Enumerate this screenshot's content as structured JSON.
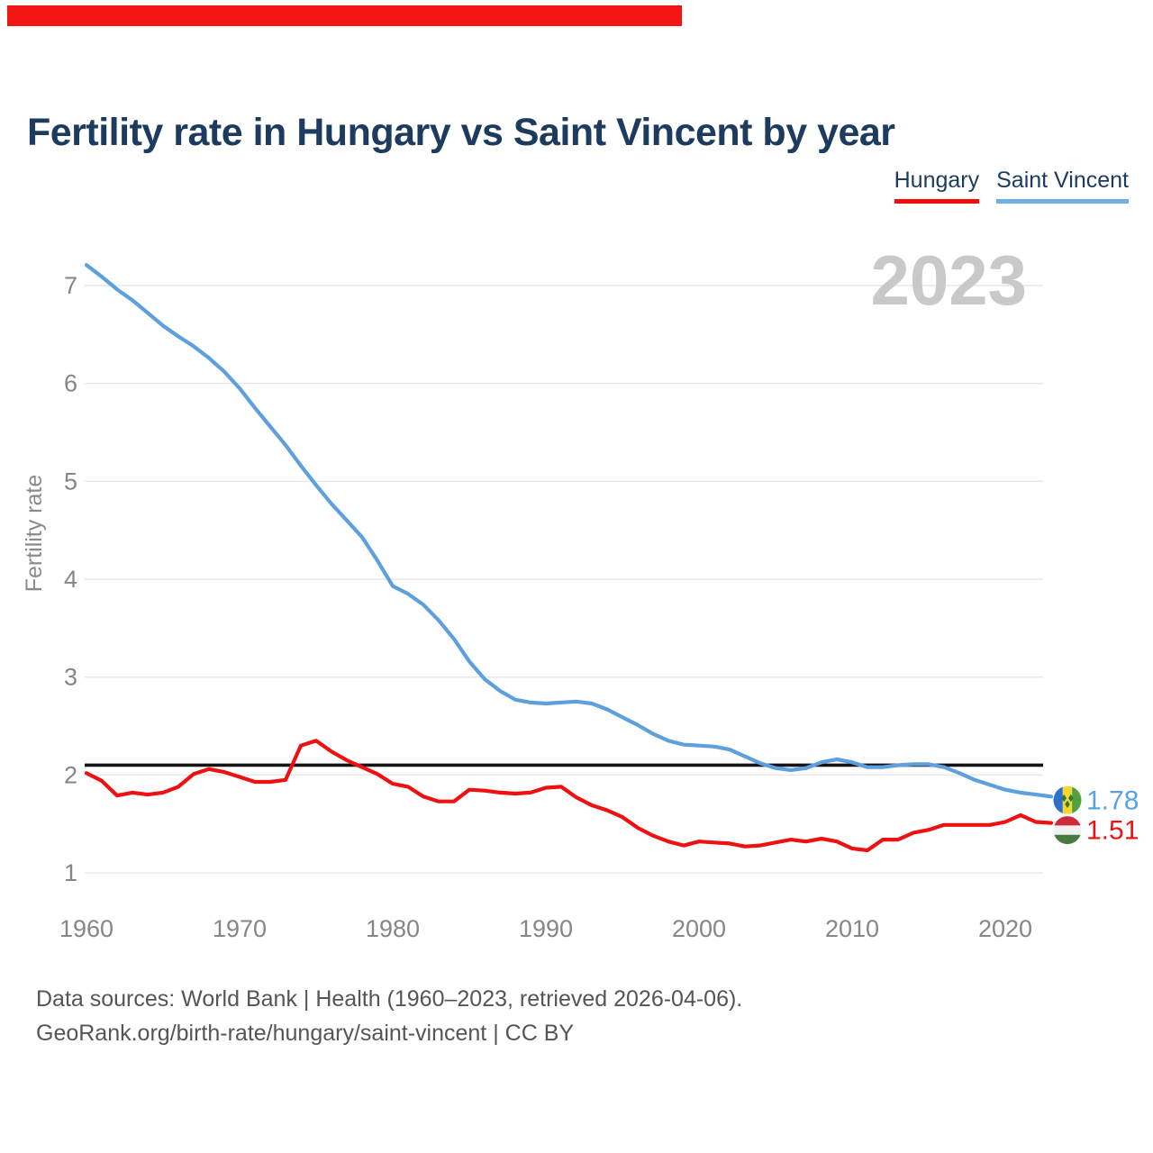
{
  "top_bar": {
    "color": "#f31414"
  },
  "header": {
    "title": "Fertility rate in Hungary vs Saint Vincent by year"
  },
  "legend": {
    "items": [
      {
        "label": "Hungary",
        "color": "#f20c0c"
      },
      {
        "label": "Saint Vincent",
        "color": "#6fb0e6"
      }
    ]
  },
  "watermark": {
    "text": "2023",
    "color": "#c9c9c9"
  },
  "chart_data": {
    "type": "line",
    "title": "Fertility rate in Hungary vs Saint Vincent by year",
    "xlabel": "",
    "ylabel": "Fertility rate",
    "xlim": [
      1960,
      2023
    ],
    "ylim": [
      1,
      7
    ],
    "grid": "horizontal",
    "legend_position": "top-right",
    "x_ticks": [
      1960,
      1970,
      1980,
      1990,
      2000,
      2010,
      2020
    ],
    "y_ticks": [
      1,
      2,
      3,
      4,
      5,
      6,
      7
    ],
    "reference_line": {
      "value": 2.1,
      "color": "#141414"
    },
    "x": [
      1960,
      1961,
      1962,
      1963,
      1964,
      1965,
      1966,
      1967,
      1968,
      1969,
      1970,
      1971,
      1972,
      1973,
      1974,
      1975,
      1976,
      1977,
      1978,
      1979,
      1980,
      1981,
      1982,
      1983,
      1984,
      1985,
      1986,
      1987,
      1988,
      1989,
      1990,
      1991,
      1992,
      1993,
      1994,
      1995,
      1996,
      1997,
      1998,
      1999,
      2000,
      2001,
      2002,
      2003,
      2004,
      2005,
      2006,
      2007,
      2008,
      2009,
      2010,
      2011,
      2012,
      2013,
      2014,
      2015,
      2016,
      2017,
      2018,
      2019,
      2020,
      2021,
      2022,
      2023
    ],
    "series": [
      {
        "name": "Hungary",
        "color": "#ee1111",
        "end_label": "1.51",
        "values": [
          2.02,
          1.94,
          1.79,
          1.82,
          1.8,
          1.82,
          1.88,
          2.01,
          2.06,
          2.03,
          1.98,
          1.93,
          1.93,
          1.95,
          2.3,
          2.35,
          2.24,
          2.15,
          2.08,
          2.01,
          1.91,
          1.88,
          1.78,
          1.73,
          1.73,
          1.85,
          1.84,
          1.82,
          1.81,
          1.82,
          1.87,
          1.88,
          1.77,
          1.69,
          1.64,
          1.57,
          1.46,
          1.38,
          1.32,
          1.28,
          1.32,
          1.31,
          1.3,
          1.27,
          1.28,
          1.31,
          1.34,
          1.32,
          1.35,
          1.32,
          1.25,
          1.23,
          1.34,
          1.34,
          1.41,
          1.44,
          1.49,
          1.49,
          1.49,
          1.49,
          1.52,
          1.59,
          1.52,
          1.51
        ]
      },
      {
        "name": "Saint Vincent",
        "color": "#5ea0dd",
        "end_label": "1.78",
        "values": [
          7.21,
          7.09,
          6.96,
          6.85,
          6.72,
          6.59,
          6.48,
          6.38,
          6.26,
          6.12,
          5.95,
          5.75,
          5.56,
          5.37,
          5.16,
          4.96,
          4.77,
          4.6,
          4.43,
          4.19,
          3.93,
          3.85,
          3.74,
          3.58,
          3.39,
          3.16,
          2.98,
          2.86,
          2.77,
          2.74,
          2.73,
          2.74,
          2.75,
          2.73,
          2.67,
          2.59,
          2.51,
          2.42,
          2.35,
          2.31,
          2.3,
          2.29,
          2.26,
          2.19,
          2.12,
          2.07,
          2.05,
          2.07,
          2.13,
          2.16,
          2.13,
          2.08,
          2.08,
          2.1,
          2.11,
          2.11,
          2.08,
          2.02,
          1.95,
          1.9,
          1.85,
          1.82,
          1.8,
          1.78
        ]
      }
    ]
  },
  "footer": {
    "line1": "Data sources: World Bank | Health (1960–2023, retrieved 2026-04-06).",
    "line2": "GeoRank.org/birth-rate/hungary/saint-vincent | CC BY"
  }
}
